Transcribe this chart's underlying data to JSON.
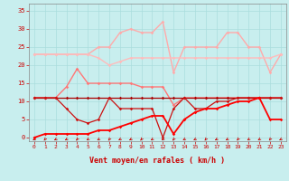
{
  "xlabel": "Vent moyen/en rafales ( km/h )",
  "xlim": [
    -0.5,
    23.5
  ],
  "ylim": [
    -1,
    37
  ],
  "yticks": [
    0,
    5,
    10,
    15,
    20,
    25,
    30,
    35
  ],
  "xticks": [
    0,
    1,
    2,
    3,
    4,
    5,
    6,
    7,
    8,
    9,
    10,
    11,
    12,
    13,
    14,
    15,
    16,
    17,
    18,
    19,
    20,
    21,
    22,
    23
  ],
  "bg_color": "#c8eeee",
  "grid_color": "#aadddd",
  "lines": [
    {
      "y": [
        23,
        23,
        23,
        23,
        23,
        23,
        25,
        25,
        29,
        30,
        29,
        29,
        32,
        18,
        25,
        25,
        25,
        25,
        29,
        29,
        25,
        25,
        18,
        23
      ],
      "color": "#ffaaaa",
      "lw": 1.0,
      "marker": "D",
      "ms": 1.8,
      "zorder": 2
    },
    {
      "y": [
        23,
        23,
        23,
        23,
        23,
        23,
        22,
        20,
        21,
        22,
        22,
        22,
        22,
        22,
        22,
        22,
        22,
        22,
        22,
        22,
        22,
        22,
        22,
        23
      ],
      "color": "#ffbbbb",
      "lw": 1.0,
      "marker": "D",
      "ms": 1.8,
      "zorder": 2
    },
    {
      "y": [
        11,
        11,
        11,
        14,
        19,
        15,
        15,
        15,
        15,
        15,
        14,
        14,
        14,
        9,
        11,
        11,
        11,
        11,
        11,
        11,
        11,
        11,
        11,
        11
      ],
      "color": "#ff7777",
      "lw": 1.0,
      "marker": "D",
      "ms": 1.8,
      "zorder": 3
    },
    {
      "y": [
        11,
        11,
        11,
        11,
        11,
        11,
        11,
        11,
        11,
        11,
        11,
        11,
        11,
        11,
        11,
        11,
        11,
        11,
        11,
        11,
        11,
        11,
        11,
        11
      ],
      "color": "#aa0000",
      "lw": 0.9,
      "marker": "D",
      "ms": 1.8,
      "zorder": 4
    },
    {
      "y": [
        11,
        11,
        11,
        8,
        5,
        4,
        5,
        11,
        8,
        8,
        8,
        8,
        0,
        8,
        11,
        8,
        8,
        10,
        10,
        11,
        11,
        11,
        11,
        11
      ],
      "color": "#cc1111",
      "lw": 0.9,
      "marker": "D",
      "ms": 1.8,
      "zorder": 4
    },
    {
      "y": [
        0,
        1,
        1,
        1,
        1,
        1,
        2,
        2,
        3,
        4,
        5,
        6,
        6,
        1,
        5,
        7,
        8,
        8,
        9,
        10,
        10,
        11,
        5,
        5
      ],
      "color": "#ff0000",
      "lw": 1.3,
      "marker": "D",
      "ms": 1.8,
      "zorder": 5
    }
  ],
  "arrow_color": "#cc0000",
  "tick_color": "#cc0000",
  "label_color": "#cc0000",
  "tick_fontsize": 4.5,
  "xlabel_fontsize": 6.0
}
